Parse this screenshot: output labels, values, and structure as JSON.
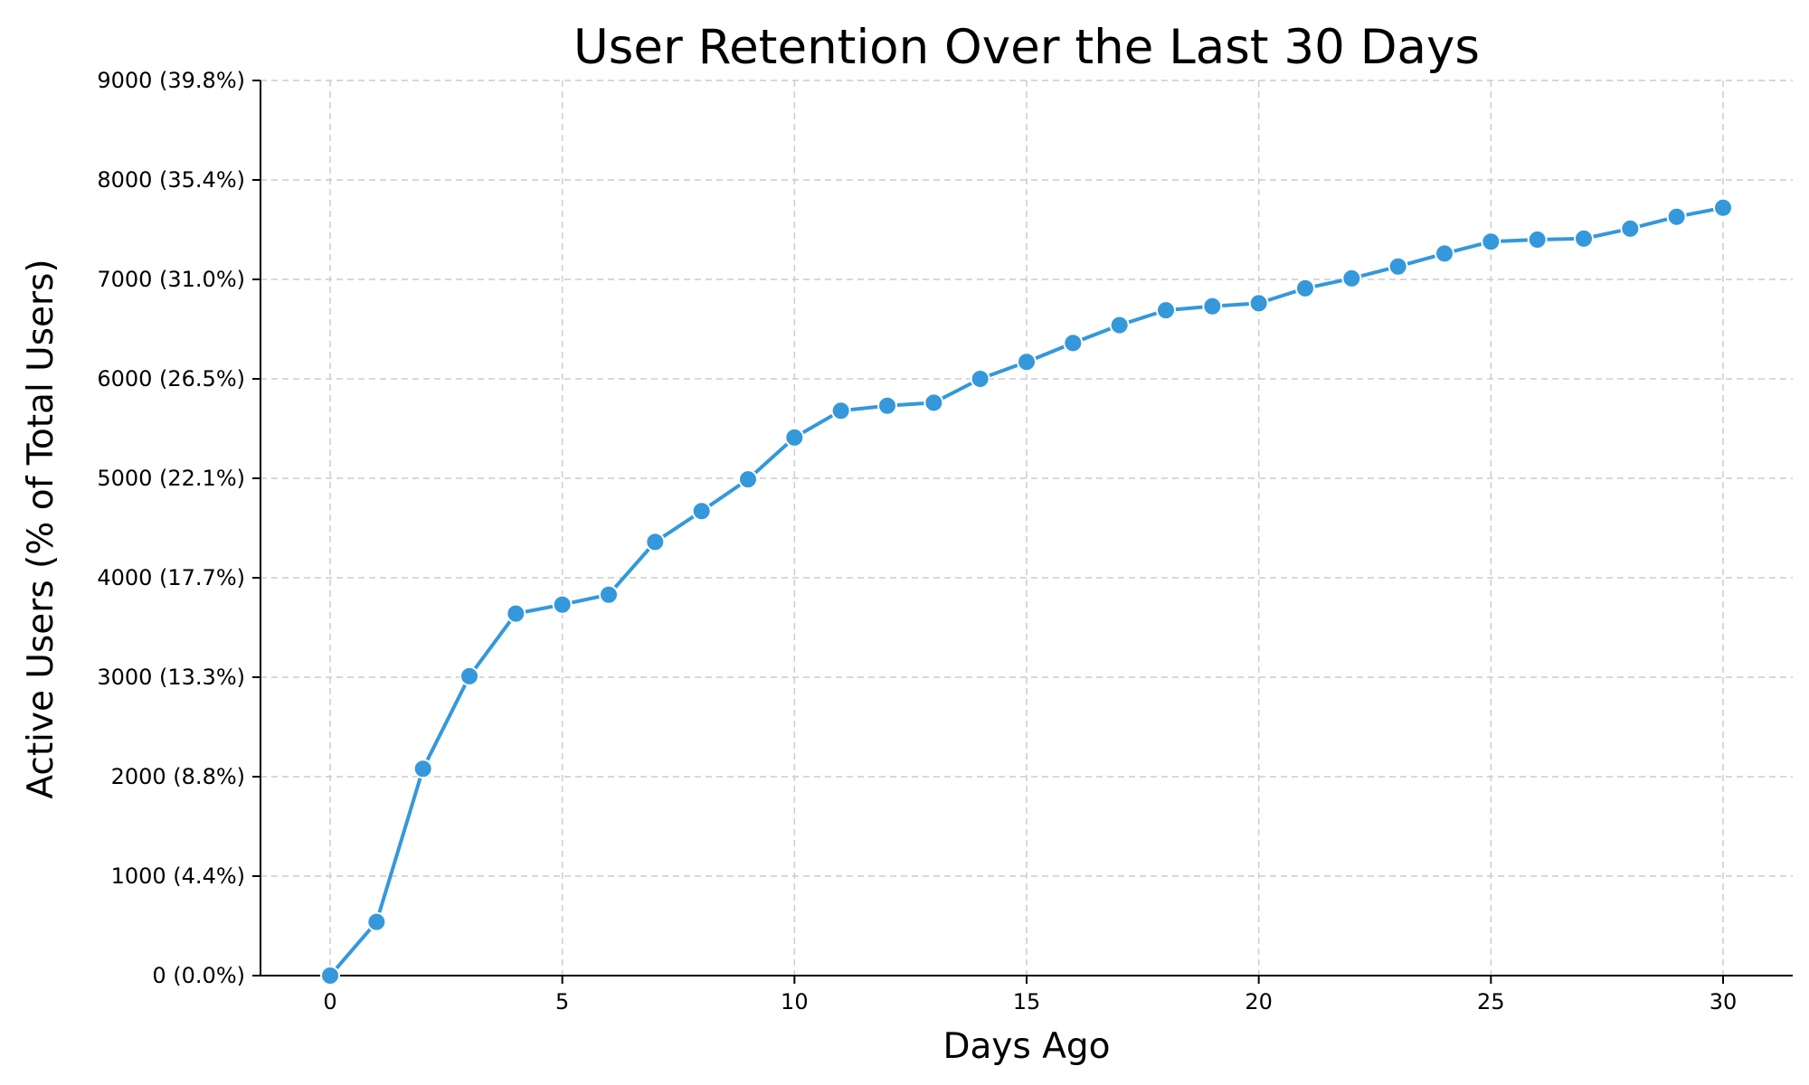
{
  "chart_data": {
    "type": "line",
    "title": "User Retention Over the Last 30 Days",
    "xlabel": "Days Ago",
    "ylabel": "Active Users (% of Total Users)",
    "xlim": [
      -1.5,
      31.5
    ],
    "ylim": [
      0,
      9000
    ],
    "x_ticks": [
      0,
      5,
      10,
      15,
      20,
      25,
      30
    ],
    "x_tick_labels": [
      "0",
      "5",
      "10",
      "15",
      "20",
      "25",
      "30"
    ],
    "y_ticks": [
      0,
      1000,
      2000,
      3000,
      4000,
      5000,
      6000,
      7000,
      8000,
      9000
    ],
    "y_tick_labels": [
      "0 (0.0%)",
      "1000 (4.4%)",
      "2000 (8.8%)",
      "3000 (13.3%)",
      "4000 (17.7%)",
      "5000 (22.1%)",
      "6000 (26.5%)",
      "7000 (31.0%)",
      "8000 (35.4%)",
      "9000 (39.8%)"
    ],
    "grid": true,
    "color": "#3498db",
    "x": [
      0,
      1,
      2,
      3,
      4,
      5,
      6,
      7,
      8,
      9,
      10,
      11,
      12,
      13,
      14,
      15,
      16,
      17,
      18,
      19,
      20,
      21,
      22,
      23,
      24,
      25,
      26,
      27,
      28,
      29,
      30
    ],
    "values": [
      0,
      540,
      2080,
      3010,
      3640,
      3730,
      3830,
      4360,
      4670,
      4990,
      5410,
      5680,
      5730,
      5760,
      6000,
      6170,
      6360,
      6540,
      6690,
      6730,
      6760,
      6910,
      7010,
      7130,
      7260,
      7380,
      7400,
      7410,
      7510,
      7630,
      7720
    ]
  }
}
